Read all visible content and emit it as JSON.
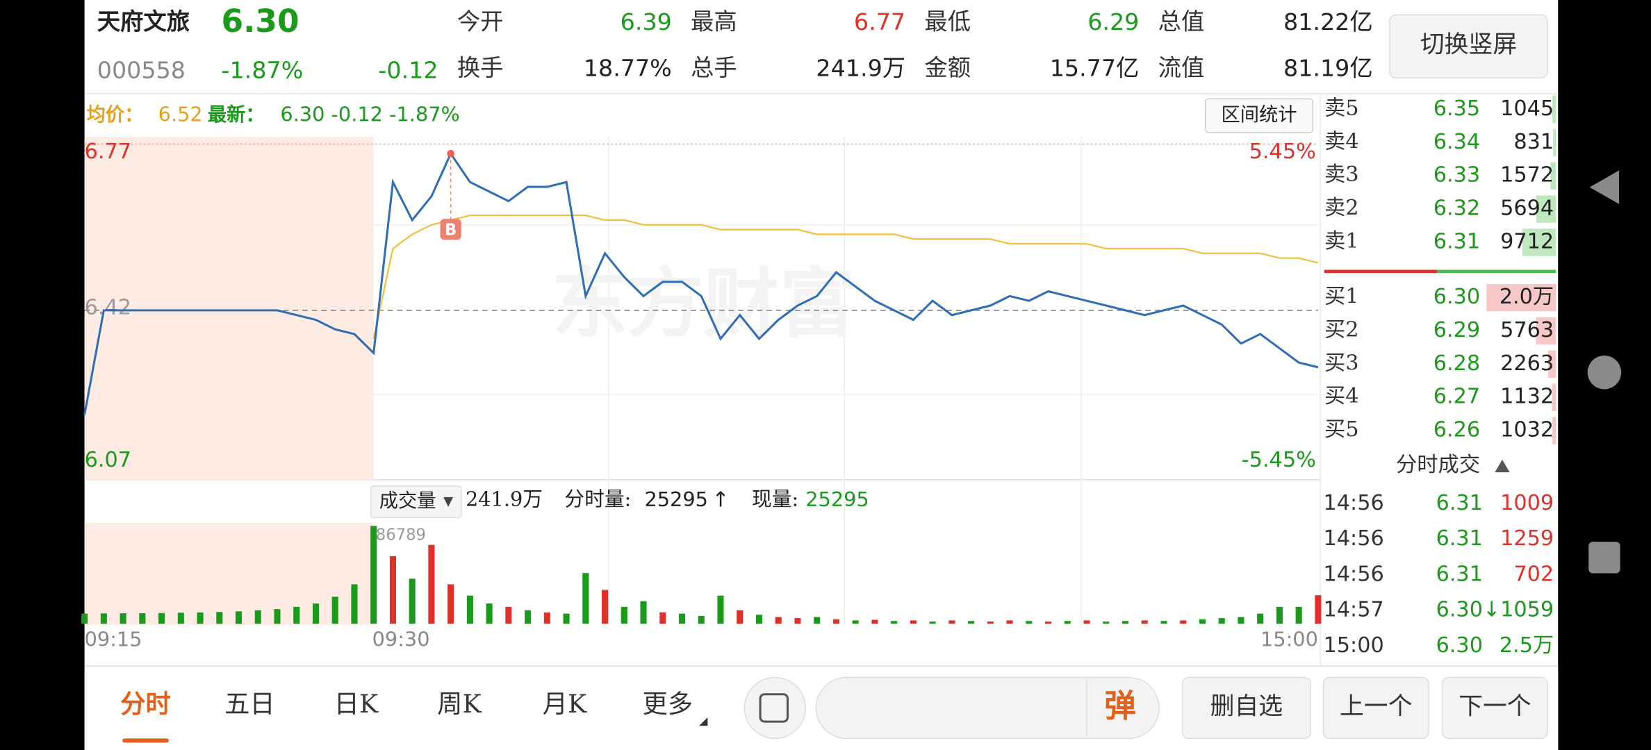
{
  "header": {
    "name": "天府文旅",
    "price": "6.30",
    "code": "000558",
    "change_pct": "-1.87%",
    "change": "-0.12",
    "stats": [
      {
        "label": "今开",
        "value": "6.39",
        "color": "#1a9a1a"
      },
      {
        "label": "最高",
        "value": "6.77",
        "color": "#e0302a"
      },
      {
        "label": "最低",
        "value": "6.29",
        "color": "#1a9a1a"
      },
      {
        "label": "总值",
        "value": "81.22亿",
        "color": "#222222"
      },
      {
        "label": "换手",
        "value": "18.77%",
        "color": "#222222"
      },
      {
        "label": "总手",
        "value": "241.9万",
        "color": "#222222"
      },
      {
        "label": "金额",
        "value": "15.77亿",
        "color": "#222222"
      },
      {
        "label": "流值",
        "value": "81.19亿",
        "color": "#222222"
      }
    ],
    "toggle_button": "切换竖屏"
  },
  "chart_data": [
    {
      "type": "line",
      "avg_label": "均价：",
      "avg_value": "6.52",
      "latest_label": "最新：",
      "latest_value": "6.30 -0.12 -1.87%",
      "range_button": "区间统计",
      "watermark": "东方财富",
      "series": [
        {
          "color": "#2f6db5",
          "values": [
            6.2,
            6.42,
            6.42,
            6.42,
            6.42,
            6.42,
            6.42,
            6.42,
            6.42,
            6.42,
            6.42,
            6.41,
            6.4,
            6.38,
            6.37,
            6.33,
            6.69,
            6.61,
            6.66,
            6.75,
            6.69,
            6.67,
            6.65,
            6.68,
            6.68,
            6.69,
            6.45,
            6.54,
            6.49,
            6.45,
            6.48,
            6.48,
            6.45,
            6.36,
            6.41,
            6.36,
            6.4,
            6.43,
            6.45,
            6.5,
            6.47,
            6.44,
            6.42,
            6.4,
            6.44,
            6.41,
            6.42,
            6.43,
            6.45,
            6.44,
            6.46,
            6.45,
            6.44,
            6.43,
            6.42,
            6.41,
            6.42,
            6.43,
            6.41,
            6.39,
            6.35,
            6.37,
            6.34,
            6.31,
            6.3
          ]
        },
        {
          "color": "#efc044",
          "values": [
            null,
            null,
            null,
            null,
            null,
            null,
            null,
            null,
            null,
            null,
            null,
            null,
            null,
            null,
            null,
            6.36,
            6.55,
            6.58,
            6.6,
            6.61,
            6.62,
            6.62,
            6.62,
            6.62,
            6.62,
            6.62,
            6.62,
            6.61,
            6.61,
            6.6,
            6.6,
            6.6,
            6.6,
            6.59,
            6.59,
            6.59,
            6.59,
            6.59,
            6.58,
            6.58,
            6.58,
            6.58,
            6.58,
            6.57,
            6.57,
            6.57,
            6.57,
            6.57,
            6.56,
            6.56,
            6.56,
            6.56,
            6.56,
            6.55,
            6.55,
            6.55,
            6.55,
            6.55,
            6.54,
            6.54,
            6.54,
            6.54,
            6.53,
            6.53,
            6.52
          ]
        }
      ],
      "annotations": [
        {
          "text": "B"
        }
      ],
      "ylim": [
        6.07,
        6.77
      ],
      "yticks": [
        6.77,
        6.42,
        6.07
      ],
      "y2lim": [
        -5.45,
        5.45
      ],
      "y2ticks": [
        {
          "value": 5.45,
          "label": "5.45%"
        },
        {
          "value": 0,
          "label": ""
        },
        {
          "value": -5.45,
          "label": "-5.45%"
        }
      ]
    },
    {
      "type": "bar",
      "header_button": "成交量",
      "total": "241.9万",
      "tick_volume_label": "分时量:",
      "tick_volume": "25295",
      "tick_arrow": "↑",
      "current_label": "现量:",
      "current": "25295",
      "categories": [
        "09:15",
        null,
        null,
        null,
        null,
        null,
        null,
        null,
        null,
        null,
        null,
        null,
        null,
        null,
        null,
        "09:30",
        null,
        null,
        null,
        null,
        null,
        null,
        null,
        null,
        null,
        null,
        null,
        null,
        null,
        null,
        null,
        null,
        null,
        null,
        null,
        null,
        null,
        null,
        null,
        null,
        null,
        null,
        null,
        null,
        null,
        null,
        null,
        null,
        null,
        null,
        null,
        null,
        null,
        null,
        null,
        null,
        null,
        null,
        null,
        null,
        null,
        null,
        null,
        null,
        "15:00"
      ],
      "values": [
        9000,
        9200,
        9300,
        9400,
        9500,
        9800,
        10000,
        10500,
        11000,
        12000,
        13000,
        15000,
        18000,
        24000,
        35000,
        86789,
        60000,
        40000,
        70000,
        35000,
        25000,
        18000,
        15000,
        12000,
        10000,
        9000,
        45000,
        30000,
        15000,
        20000,
        10000,
        9000,
        7000,
        25000,
        12000,
        8000,
        6000,
        5000,
        6000,
        4000,
        3000,
        3500,
        2500,
        3000,
        2000,
        3000,
        2500,
        2000,
        3000,
        2500,
        2000,
        2500,
        3000,
        2000,
        2500,
        3000,
        2500,
        3000,
        4000,
        5000,
        6000,
        9000,
        15000,
        15000,
        25295
      ],
      "colors": [
        "#1a9a1a",
        "#1a9a1a",
        "#1a9a1a",
        "#1a9a1a",
        "#1a9a1a",
        "#1a9a1a",
        "#1a9a1a",
        "#1a9a1a",
        "#1a9a1a",
        "#1a9a1a",
        "#1a9a1a",
        "#1a9a1a",
        "#1a9a1a",
        "#1a9a1a",
        "#1a9a1a",
        "#1a9a1a",
        "#e0302a",
        "#1a9a1a",
        "#e0302a",
        "#e0302a",
        "#1a9a1a",
        "#1a9a1a",
        "#e0302a",
        "#1a9a1a",
        "#e0302a",
        "#1a9a1a",
        "#1a9a1a",
        "#e0302a",
        "#1a9a1a",
        "#1a9a1a",
        "#e0302a",
        "#1a9a1a",
        "#1a9a1a",
        "#1a9a1a",
        "#e0302a",
        "#1a9a1a",
        "#e0302a",
        "#e0302a",
        "#1a9a1a",
        "#e0302a",
        "#1a9a1a",
        "#e0302a",
        "#1a9a1a",
        "#e0302a",
        "#1a9a1a",
        "#e0302a",
        "#1a9a1a",
        "#e0302a",
        "#e0302a",
        "#1a9a1a",
        "#e0302a",
        "#1a9a1a",
        "#e0302a",
        "#1a9a1a",
        "#1a9a1a",
        "#e0302a",
        "#1a9a1a",
        "#e0302a",
        "#1a9a1a",
        "#1a9a1a",
        "#1a9a1a",
        "#1a9a1a",
        "#1a9a1a",
        "#1a9a1a",
        "#e0302a"
      ],
      "ylim": [
        0,
        86789
      ],
      "yticks": [
        86789
      ]
    }
  ],
  "order_book": {
    "asks": [
      {
        "label": "卖5",
        "price": "6.35",
        "volume": 1045
      },
      {
        "label": "卖4",
        "price": "6.34",
        "volume": 831
      },
      {
        "label": "卖3",
        "price": "6.33",
        "volume": 1572
      },
      {
        "label": "卖2",
        "price": "6.32",
        "volume": 5694
      },
      {
        "label": "卖1",
        "price": "6.31",
        "volume": 9712
      }
    ],
    "bids": [
      {
        "label": "买1",
        "price": "6.30",
        "volume": 20000,
        "value_label": "2.0万"
      },
      {
        "label": "买2",
        "price": "6.29",
        "volume": 5763
      },
      {
        "label": "买3",
        "price": "6.28",
        "volume": 2263
      },
      {
        "label": "买4",
        "price": "6.27",
        "volume": 1132
      },
      {
        "label": "买5",
        "price": "6.26",
        "volume": 1032
      }
    ]
  },
  "trades": {
    "title": "分时成交",
    "rows": [
      {
        "time": "14:56",
        "price": "6.31",
        "volume": "1009",
        "color": "#e0302a"
      },
      {
        "time": "14:56",
        "price": "6.31",
        "volume": "1259",
        "color": "#e0302a"
      },
      {
        "time": "14:56",
        "price": "6.31",
        "volume": "702",
        "color": "#e0302a"
      },
      {
        "time": "14:57",
        "price": "6.30↓",
        "volume": "1059",
        "color": "#1a9a1a"
      },
      {
        "time": "15:00",
        "price": "6.30",
        "volume": "2.5万",
        "color": "#1a9a1a"
      }
    ]
  },
  "tabs": [
    "分时",
    "五日",
    "日K",
    "周K",
    "月K",
    "更多"
  ],
  "input_icon": "弹",
  "buttons": [
    "删自选",
    "上一个",
    "下一个"
  ]
}
